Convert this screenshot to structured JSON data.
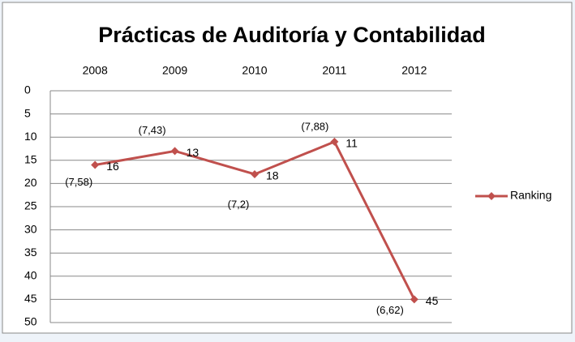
{
  "chart_data": {
    "type": "line",
    "title": "Prácticas de Auditoría y Contabilidad",
    "categories": [
      "2008",
      "2009",
      "2010",
      "2011",
      "2012"
    ],
    "series": [
      {
        "name": "Ranking",
        "color": "#c0504d",
        "values": [
          16,
          13,
          18,
          11,
          45
        ],
        "annotations": [
          "(7,58)",
          "(7,43)",
          "(7,2)",
          "(7,88)",
          "(6,62)"
        ]
      }
    ],
    "ylim": [
      0,
      50
    ],
    "y_inverted": true,
    "x_axis_position": "top",
    "yticks": [
      0,
      5,
      10,
      15,
      20,
      25,
      30,
      35,
      40,
      45,
      50
    ],
    "grid": true,
    "legend": "right"
  }
}
